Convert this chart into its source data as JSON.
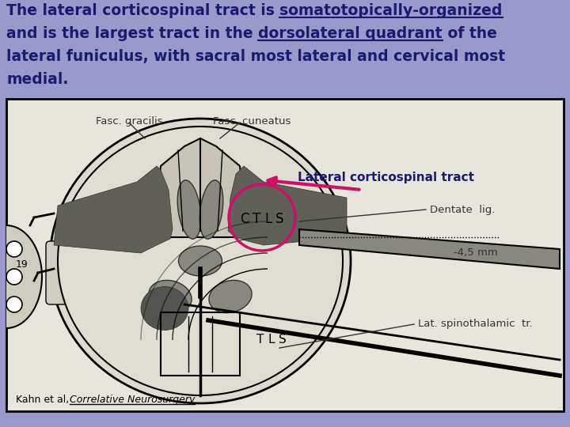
{
  "background_color": "#9999cc",
  "text_color": "#1a1a6e",
  "title_fontsize": 13.5,
  "label_box_color": "#cc99cc",
  "label_box_text": "Lateral corticospinal tract",
  "arrow_color": "#cc1166",
  "image_bg": "#e8e6dc",
  "image_border_color": "#000000",
  "citation_normal": "Kahn et al,  ",
  "citation_underlined": "Correlative Neurosurgery"
}
